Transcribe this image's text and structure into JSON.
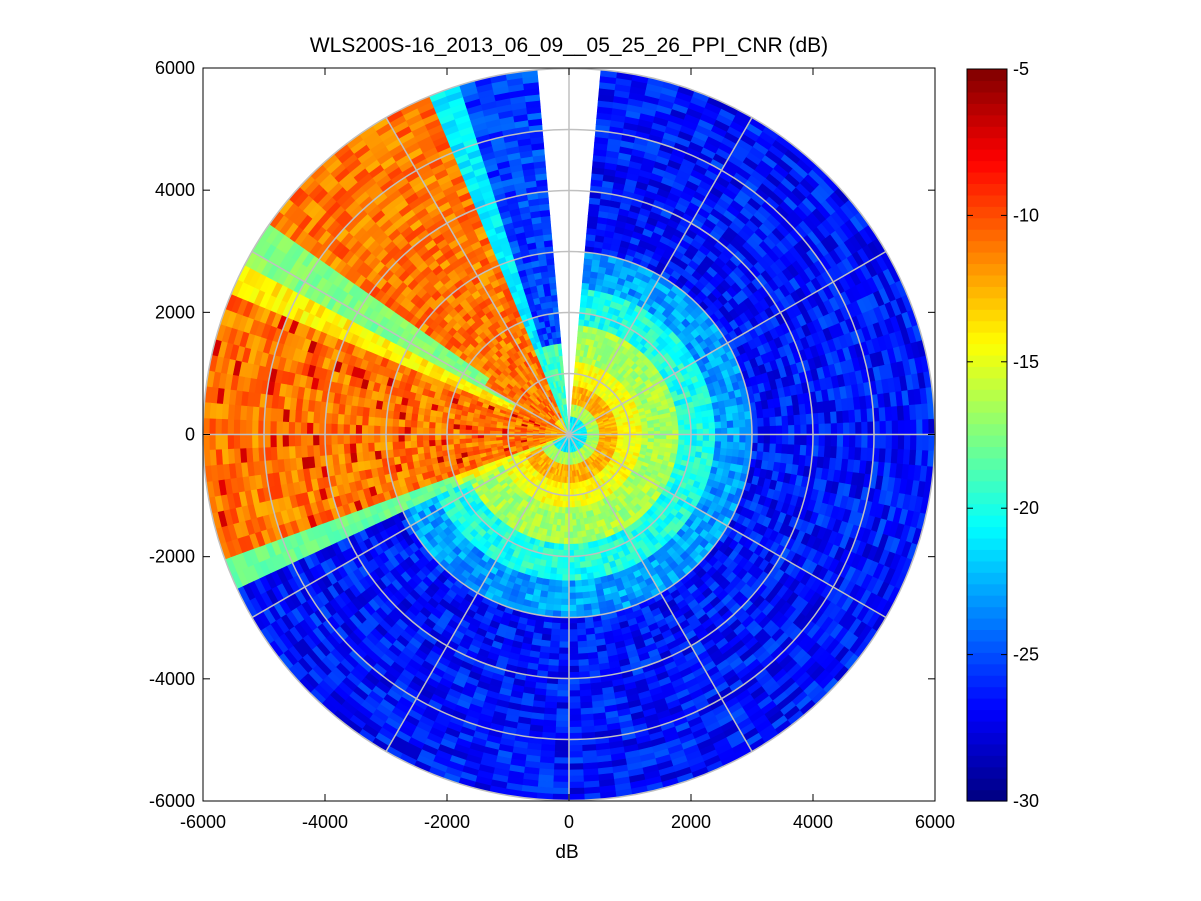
{
  "chart_data": {
    "type": "heatmap",
    "subtype": "polar-ppi",
    "title": "WLS200S-16_2013_06_09__05_25_26_PPI_CNR (dB)",
    "xlabel": "dB",
    "ylabel": "",
    "xlim": [
      -6000,
      6000
    ],
    "ylim": [
      -6000,
      6000
    ],
    "xticks": [
      "-6000",
      "-4000",
      "-2000",
      "0",
      "2000",
      "4000",
      "6000"
    ],
    "yticks": [
      "6000",
      "4000",
      "2000",
      "0",
      "-2000",
      "-4000",
      "-6000"
    ],
    "max_range": 6000,
    "range_rings": [
      1000,
      2000,
      3000,
      4000,
      5000,
      6000
    ],
    "spoke_angles_deg": [
      0,
      30,
      60,
      90,
      120,
      150,
      180,
      210,
      240,
      270,
      300,
      330
    ],
    "no_data_sector_deg": [
      85,
      95
    ],
    "colorbar": {
      "label": "dB",
      "min": -30,
      "max": -5,
      "ticks": [
        "-5",
        "-10",
        "-15",
        "-20",
        "-25",
        "-30"
      ],
      "colormap": "jet"
    },
    "sectors": [
      {
        "name": "east-south",
        "az_start_deg": -150,
        "az_end_deg": 85,
        "profile": "near-field yellow/orange ring at ~600 m, cyan by 2000 m, blue (-27 dB) beyond 3000 m"
      },
      {
        "name": "north-west-blue",
        "az_start_deg": 95,
        "az_end_deg": 108,
        "profile": "cyan to blue"
      },
      {
        "name": "north-west-cyan",
        "az_start_deg": 108,
        "az_end_deg": 113,
        "profile": "cyan"
      },
      {
        "name": "north-west-orange",
        "az_start_deg": 113,
        "az_end_deg": 145,
        "profile": "orange (-11 dB)"
      },
      {
        "name": "west-green",
        "az_start_deg": 145,
        "az_end_deg": 158,
        "profile": "yellow-green (-17 dB)"
      },
      {
        "name": "west-yellow",
        "az_start_deg": 150,
        "az_end_deg": 158,
        "profile": "yellow (-14 dB)"
      },
      {
        "name": "west-orange",
        "az_start_deg": 158,
        "az_end_deg": 202,
        "profile": "orange with red streaks (-9 to -12 dB)"
      },
      {
        "name": "south-west-green",
        "az_start_deg": 200,
        "az_end_deg": 205,
        "profile": "green (-18 dB)"
      }
    ]
  }
}
